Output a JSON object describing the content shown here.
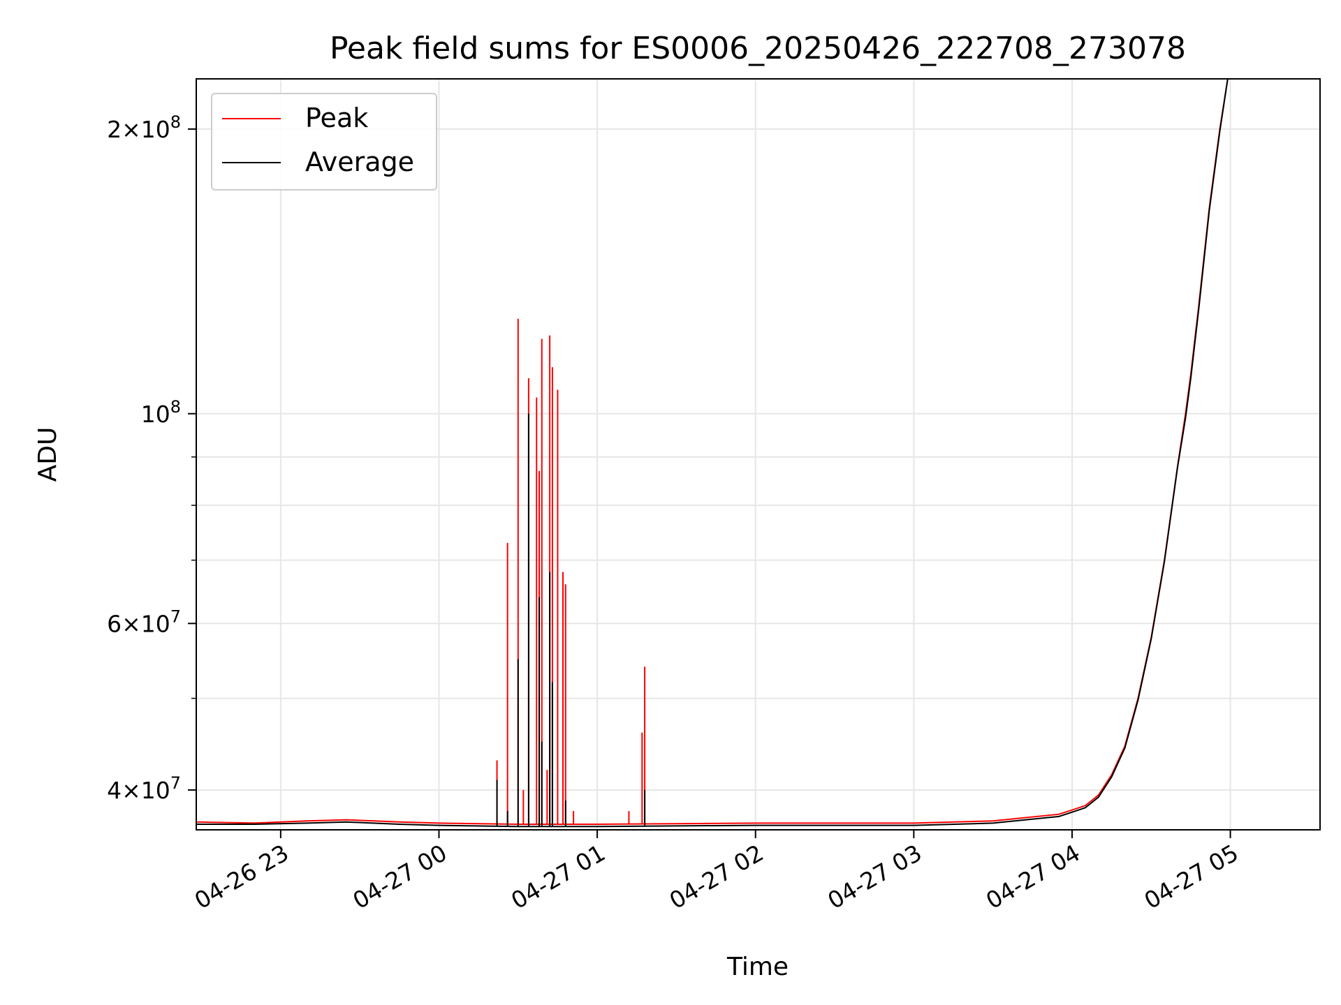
{
  "chart_data": {
    "type": "line",
    "title": "Peak field sums for ES0006_20250426_222708_273078",
    "xlabel": "Time",
    "ylabel": "ADU",
    "y_scale": "log",
    "ylim": [
      36300000,
      226000000
    ],
    "xlim": [
      "2025-04-26 22:28",
      "2025-04-27 05:34"
    ],
    "grid": true,
    "legend_position": "upper-left",
    "x_tick_labels": [
      "04-26 23",
      "04-27 00",
      "04-27 01",
      "04-27 02",
      "04-27 03",
      "04-27 04",
      "04-27 05"
    ],
    "x_tick_values": [
      "2025-04-26 23:00",
      "2025-04-27 00:00",
      "2025-04-27 01:00",
      "2025-04-27 02:00",
      "2025-04-27 03:00",
      "2025-04-27 04:00",
      "2025-04-27 05:00"
    ],
    "y_tick_labels": [
      {
        "coef": "4",
        "exp": "7",
        "value": 40000000
      },
      {
        "coef": "6",
        "exp": "7",
        "value": 60000000
      },
      {
        "coef": "",
        "exp": "8",
        "value": 100000000
      },
      {
        "coef": "2",
        "exp": "8",
        "value": 200000000
      }
    ],
    "y_minor_ticks": [
      50000000,
      70000000,
      80000000,
      90000000
    ],
    "series": [
      {
        "name": "Peak",
        "color": "#ff0000",
        "baseline": [
          [
            "2025-04-26 22:28",
            37000000
          ],
          [
            "2025-04-26 22:50",
            36900000
          ],
          [
            "2025-04-26 23:10",
            37100000
          ],
          [
            "2025-04-26 23:25",
            37200000
          ],
          [
            "2025-04-26 23:45",
            37000000
          ],
          [
            "2025-04-27 00:00",
            36900000
          ],
          [
            "2025-04-27 00:30",
            36800000
          ],
          [
            "2025-04-27 01:00",
            36800000
          ],
          [
            "2025-04-27 02:00",
            36900000
          ],
          [
            "2025-04-27 03:00",
            36900000
          ],
          [
            "2025-04-27 03:30",
            37100000
          ],
          [
            "2025-04-27 03:55",
            37700000
          ],
          [
            "2025-04-27 04:05",
            38500000
          ],
          [
            "2025-04-27 04:10",
            39500000
          ],
          [
            "2025-04-27 04:15",
            41500000
          ],
          [
            "2025-04-27 04:20",
            44500000
          ],
          [
            "2025-04-27 04:25",
            50000000
          ],
          [
            "2025-04-27 04:30",
            58000000
          ],
          [
            "2025-04-27 04:35",
            70000000
          ],
          [
            "2025-04-27 04:40",
            88000000
          ],
          [
            "2025-04-27 04:43",
            100000000
          ],
          [
            "2025-04-27 04:45",
            110000000
          ],
          [
            "2025-04-27 04:48",
            130000000
          ],
          [
            "2025-04-27 04:52",
            165000000
          ],
          [
            "2025-04-27 04:56",
            200000000
          ],
          [
            "2025-04-27 04:59",
            226000000
          ]
        ],
        "spikes": [
          [
            "2025-04-27 00:22",
            43000000
          ],
          [
            "2025-04-27 00:26",
            73000000
          ],
          [
            "2025-04-27 00:30",
            126000000
          ],
          [
            "2025-04-27 00:32",
            40000000
          ],
          [
            "2025-04-27 00:34",
            109000000
          ],
          [
            "2025-04-27 00:37",
            104000000
          ],
          [
            "2025-04-27 00:38",
            87000000
          ],
          [
            "2025-04-27 00:39",
            120000000
          ],
          [
            "2025-04-27 00:41",
            42000000
          ],
          [
            "2025-04-27 00:42",
            121000000
          ],
          [
            "2025-04-27 00:43",
            112000000
          ],
          [
            "2025-04-27 00:45",
            106000000
          ],
          [
            "2025-04-27 00:47",
            68000000
          ],
          [
            "2025-04-27 00:48",
            66000000
          ],
          [
            "2025-04-27 00:51",
            38000000
          ],
          [
            "2025-04-27 01:12",
            38000000
          ],
          [
            "2025-04-27 01:17",
            46000000
          ],
          [
            "2025-04-27 01:18",
            54000000
          ]
        ]
      },
      {
        "name": "Average",
        "color": "#000000",
        "baseline": [
          [
            "2025-04-26 22:28",
            36800000
          ],
          [
            "2025-04-26 22:50",
            36800000
          ],
          [
            "2025-04-26 23:10",
            36900000
          ],
          [
            "2025-04-26 23:25",
            37000000
          ],
          [
            "2025-04-26 23:45",
            36800000
          ],
          [
            "2025-04-27 00:00",
            36700000
          ],
          [
            "2025-04-27 00:30",
            36600000
          ],
          [
            "2025-04-27 01:00",
            36600000
          ],
          [
            "2025-04-27 02:00",
            36700000
          ],
          [
            "2025-04-27 03:00",
            36700000
          ],
          [
            "2025-04-27 03:30",
            36900000
          ],
          [
            "2025-04-27 03:55",
            37500000
          ],
          [
            "2025-04-27 04:05",
            38300000
          ],
          [
            "2025-04-27 04:10",
            39300000
          ],
          [
            "2025-04-27 04:15",
            41300000
          ],
          [
            "2025-04-27 04:20",
            44300000
          ],
          [
            "2025-04-27 04:25",
            49800000
          ],
          [
            "2025-04-27 04:30",
            57800000
          ],
          [
            "2025-04-27 04:35",
            69800000
          ],
          [
            "2025-04-27 04:40",
            87800000
          ],
          [
            "2025-04-27 04:43",
            99000000
          ],
          [
            "2025-04-27 04:45",
            109000000
          ],
          [
            "2025-04-27 04:48",
            129000000
          ],
          [
            "2025-04-27 04:52",
            164000000
          ],
          [
            "2025-04-27 04:56",
            199000000
          ],
          [
            "2025-04-27 04:59",
            226000000
          ]
        ],
        "spikes": [
          [
            "2025-04-27 00:22",
            41000000
          ],
          [
            "2025-04-27 00:26",
            38000000
          ],
          [
            "2025-04-27 00:30",
            55000000
          ],
          [
            "2025-04-27 00:34",
            100000000
          ],
          [
            "2025-04-27 00:38",
            64000000
          ],
          [
            "2025-04-27 00:39",
            45000000
          ],
          [
            "2025-04-27 00:42",
            68000000
          ],
          [
            "2025-04-27 00:43",
            52000000
          ],
          [
            "2025-04-27 00:48",
            39000000
          ],
          [
            "2025-04-27 01:18",
            40000000
          ]
        ]
      }
    ]
  }
}
